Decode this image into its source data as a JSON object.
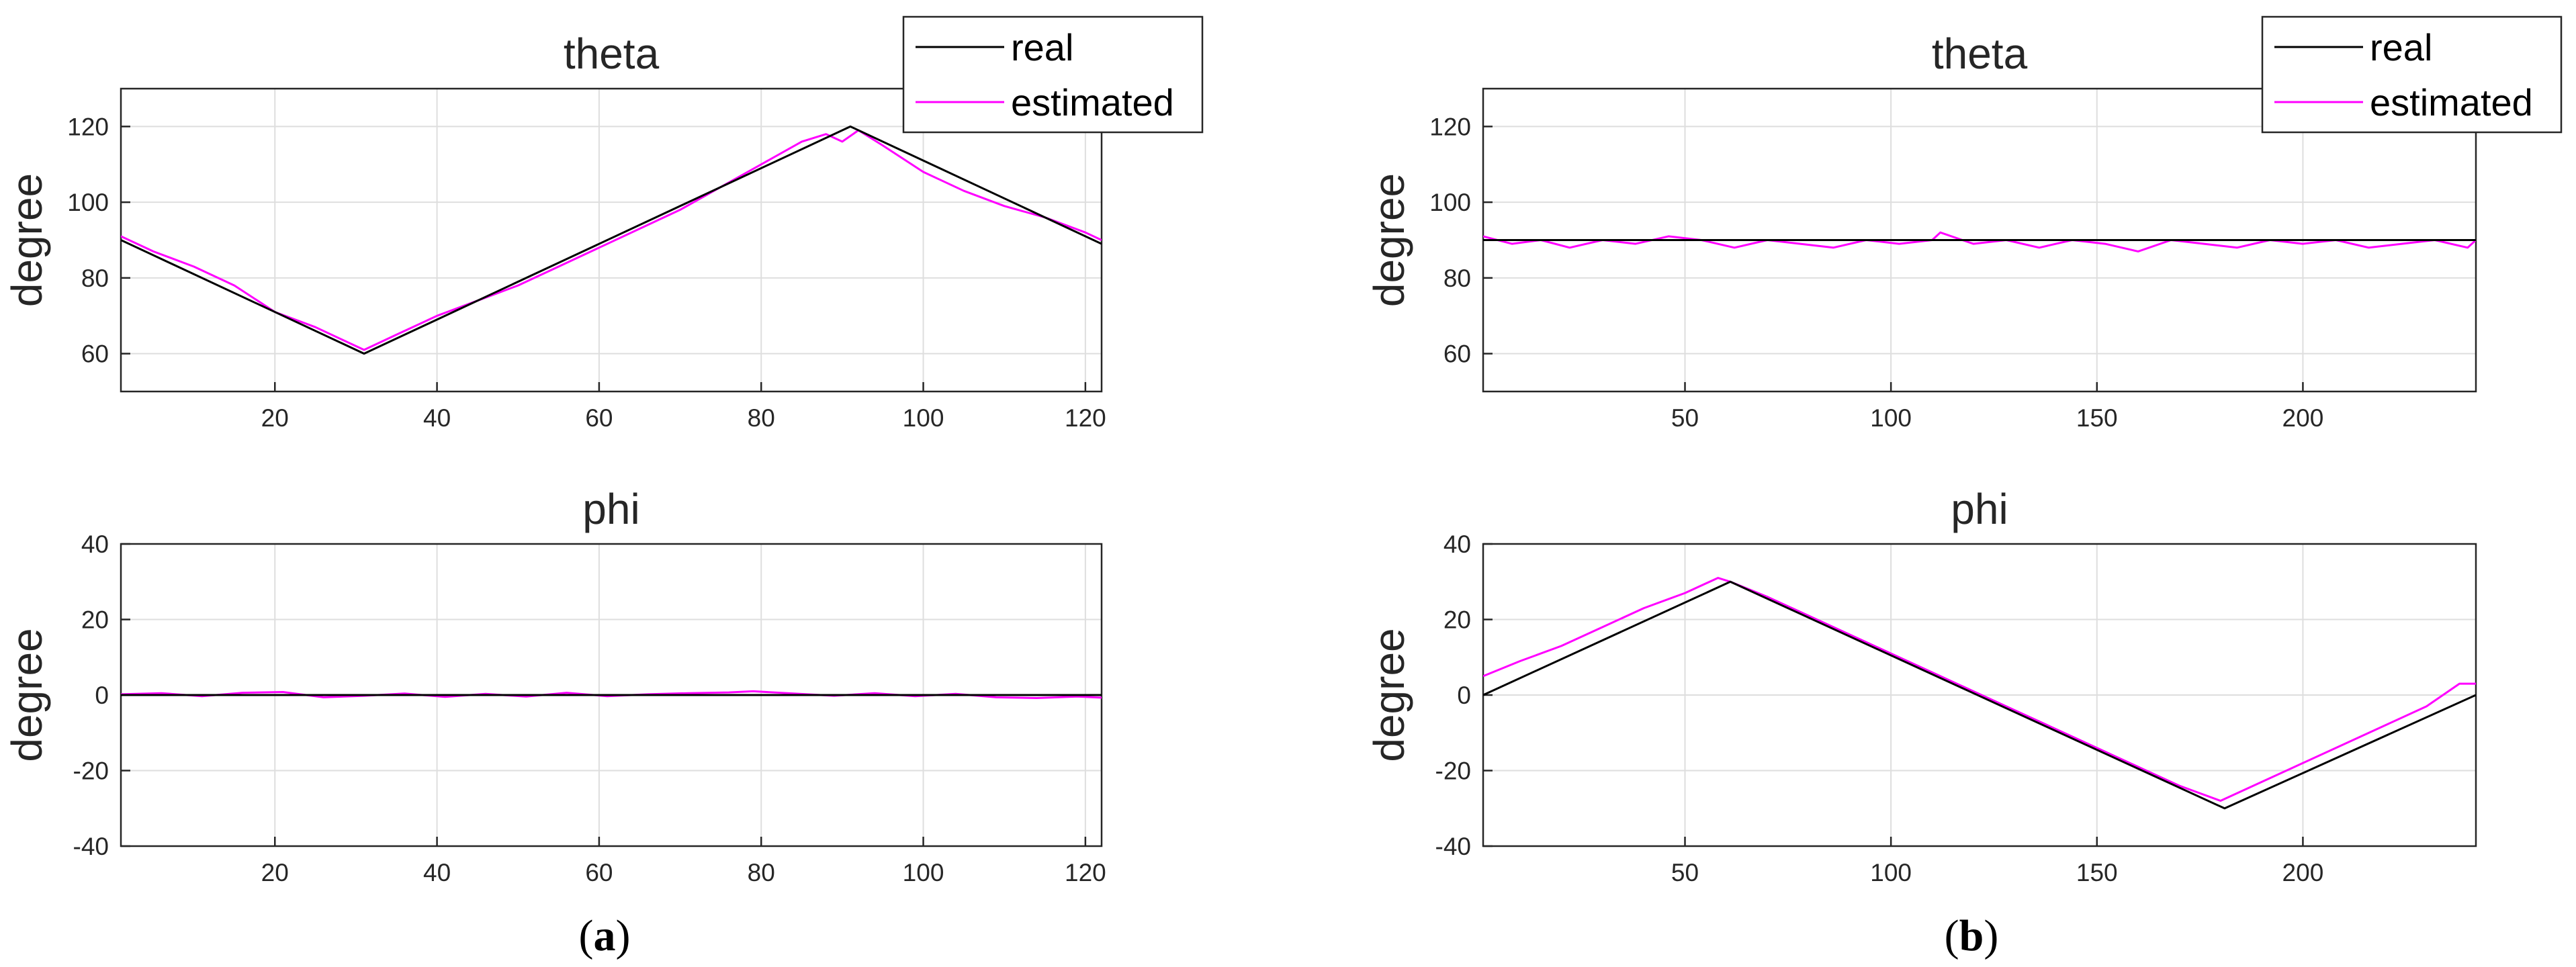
{
  "colors": {
    "real": "#000000",
    "estimated": "#ff00ff",
    "grid": "#dedede",
    "axis": "#262626"
  },
  "panel_labels": {
    "a": "a",
    "b": "b"
  },
  "chart_data": [
    {
      "id": "a-theta",
      "type": "line",
      "title": "theta",
      "xlabel": "",
      "ylabel": "degree",
      "xlim": [
        1,
        122
      ],
      "ylim": [
        50,
        130
      ],
      "xticks": [
        20,
        40,
        60,
        80,
        100,
        120
      ],
      "yticks": [
        60,
        80,
        100,
        120
      ],
      "grid": true,
      "legend": {
        "placement": "top-right",
        "entries": [
          "real",
          "estimated"
        ]
      },
      "series": [
        {
          "name": "real",
          "color": "#000000",
          "x": [
            1,
            31,
            91,
            122
          ],
          "y": [
            90,
            60,
            120,
            89
          ]
        },
        {
          "name": "estimated",
          "color": "#ff00ff",
          "x": [
            1,
            5,
            10,
            15,
            20,
            25,
            30,
            31,
            35,
            40,
            45,
            50,
            55,
            60,
            65,
            70,
            75,
            80,
            85,
            88,
            90,
            92,
            95,
            100,
            105,
            110,
            115,
            120,
            122
          ],
          "y": [
            91,
            87,
            83,
            78,
            71,
            67,
            62,
            61,
            65,
            70,
            74,
            78,
            83,
            88,
            93,
            98,
            104,
            110,
            116,
            118,
            116,
            119,
            115,
            108,
            103,
            99,
            96,
            92,
            90
          ]
        }
      ]
    },
    {
      "id": "a-phi",
      "type": "line",
      "title": "phi",
      "xlabel": "",
      "ylabel": "degree",
      "xlim": [
        1,
        122
      ],
      "ylim": [
        -40,
        40
      ],
      "xticks": [
        20,
        40,
        60,
        80,
        100,
        120
      ],
      "yticks": [
        -40,
        -20,
        0,
        20,
        40
      ],
      "grid": true,
      "series": [
        {
          "name": "real",
          "color": "#000000",
          "x": [
            1,
            122
          ],
          "y": [
            0,
            0
          ]
        },
        {
          "name": "estimated",
          "color": "#ff00ff",
          "x": [
            1,
            6,
            11,
            16,
            21,
            26,
            31,
            36,
            41,
            46,
            51,
            56,
            61,
            66,
            71,
            76,
            79,
            84,
            89,
            94,
            99,
            104,
            109,
            114,
            119,
            122
          ],
          "y": [
            0.2,
            0.5,
            -0.3,
            0.6,
            0.8,
            -0.6,
            -0.2,
            0.4,
            -0.5,
            0.3,
            -0.4,
            0.6,
            -0.3,
            0.2,
            0.5,
            0.7,
            1.0,
            0.4,
            -0.2,
            0.5,
            -0.3,
            0.3,
            -0.6,
            -0.8,
            -0.4,
            -0.7
          ]
        }
      ]
    },
    {
      "id": "b-theta",
      "type": "line",
      "title": "theta",
      "xlabel": "",
      "ylabel": "degree",
      "xlim": [
        1,
        242
      ],
      "ylim": [
        50,
        130
      ],
      "xticks": [
        50,
        100,
        150,
        200
      ],
      "yticks": [
        60,
        80,
        100,
        120
      ],
      "grid": true,
      "legend": {
        "placement": "top-right",
        "entries": [
          "real",
          "estimated"
        ]
      },
      "series": [
        {
          "name": "real",
          "color": "#000000",
          "x": [
            1,
            242
          ],
          "y": [
            90,
            90
          ]
        },
        {
          "name": "estimated",
          "color": "#ff00ff",
          "x": [
            1,
            8,
            15,
            22,
            30,
            38,
            46,
            54,
            62,
            70,
            78,
            86,
            94,
            102,
            110,
            112,
            120,
            128,
            136,
            144,
            152,
            160,
            168,
            176,
            184,
            192,
            200,
            208,
            216,
            224,
            232,
            240,
            242
          ],
          "y": [
            91,
            89,
            90,
            88,
            90,
            89,
            91,
            90,
            88,
            90,
            89,
            88,
            90,
            89,
            90,
            92,
            89,
            90,
            88,
            90,
            89,
            87,
            90,
            89,
            88,
            90,
            89,
            90,
            88,
            89,
            90,
            88,
            90
          ]
        }
      ]
    },
    {
      "id": "b-phi",
      "type": "line",
      "title": "phi",
      "xlabel": "",
      "ylabel": "degree",
      "xlim": [
        1,
        242
      ],
      "ylim": [
        -40,
        40
      ],
      "xticks": [
        50,
        100,
        150,
        200
      ],
      "yticks": [
        -40,
        -20,
        0,
        20,
        40
      ],
      "grid": true,
      "series": [
        {
          "name": "real",
          "color": "#000000",
          "x": [
            1,
            61,
            181,
            242
          ],
          "y": [
            0,
            30,
            -30,
            0
          ]
        },
        {
          "name": "estimated",
          "color": "#ff00ff",
          "x": [
            1,
            10,
            20,
            30,
            40,
            50,
            58,
            61,
            70,
            80,
            90,
            100,
            110,
            120,
            130,
            140,
            150,
            160,
            170,
            180,
            190,
            200,
            210,
            220,
            230,
            238,
            242
          ],
          "y": [
            5,
            9,
            13,
            18,
            23,
            27,
            31,
            30,
            26,
            21,
            16,
            11,
            6,
            1,
            -4,
            -9,
            -14,
            -19,
            -24,
            -28,
            -23,
            -18,
            -13,
            -8,
            -3,
            3,
            3
          ]
        }
      ]
    }
  ]
}
